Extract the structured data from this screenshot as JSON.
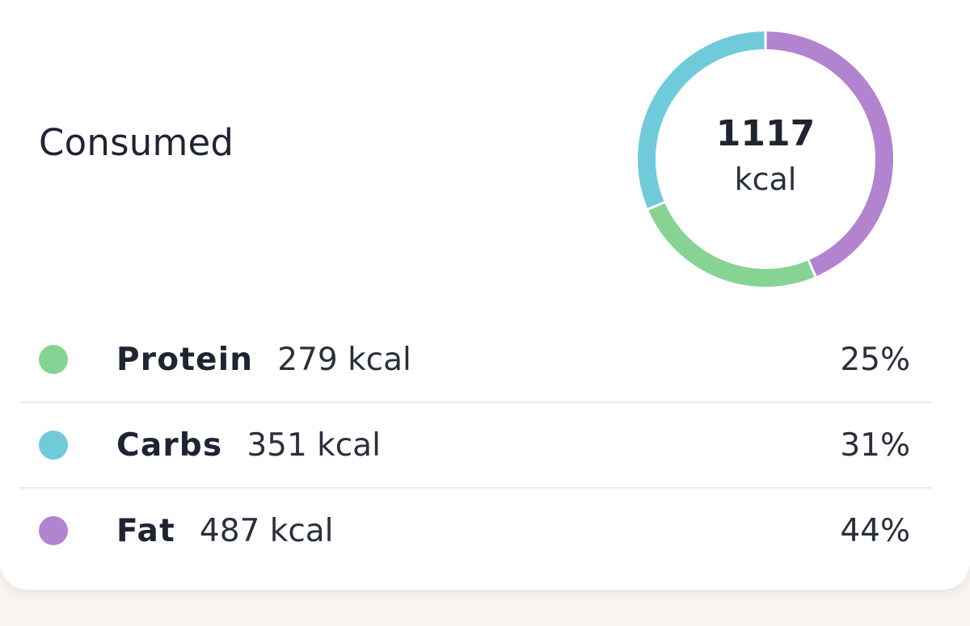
{
  "card": {
    "title": "Consumed",
    "total_value": "1117",
    "total_unit": "kcal"
  },
  "macros": [
    {
      "name": "Protein",
      "kcal": "279 kcal",
      "percent": "25%",
      "color": "#86d393"
    },
    {
      "name": "Carbs",
      "kcal": "351 kcal",
      "percent": "31%",
      "color": "#6fcbd9"
    },
    {
      "name": "Fat",
      "kcal": "487 kcal",
      "percent": "44%",
      "color": "#b283cf"
    }
  ],
  "chart_data": {
    "type": "pie",
    "categories": [
      "Protein",
      "Carbs",
      "Fat"
    ],
    "values": [
      279,
      351,
      487
    ]
  }
}
